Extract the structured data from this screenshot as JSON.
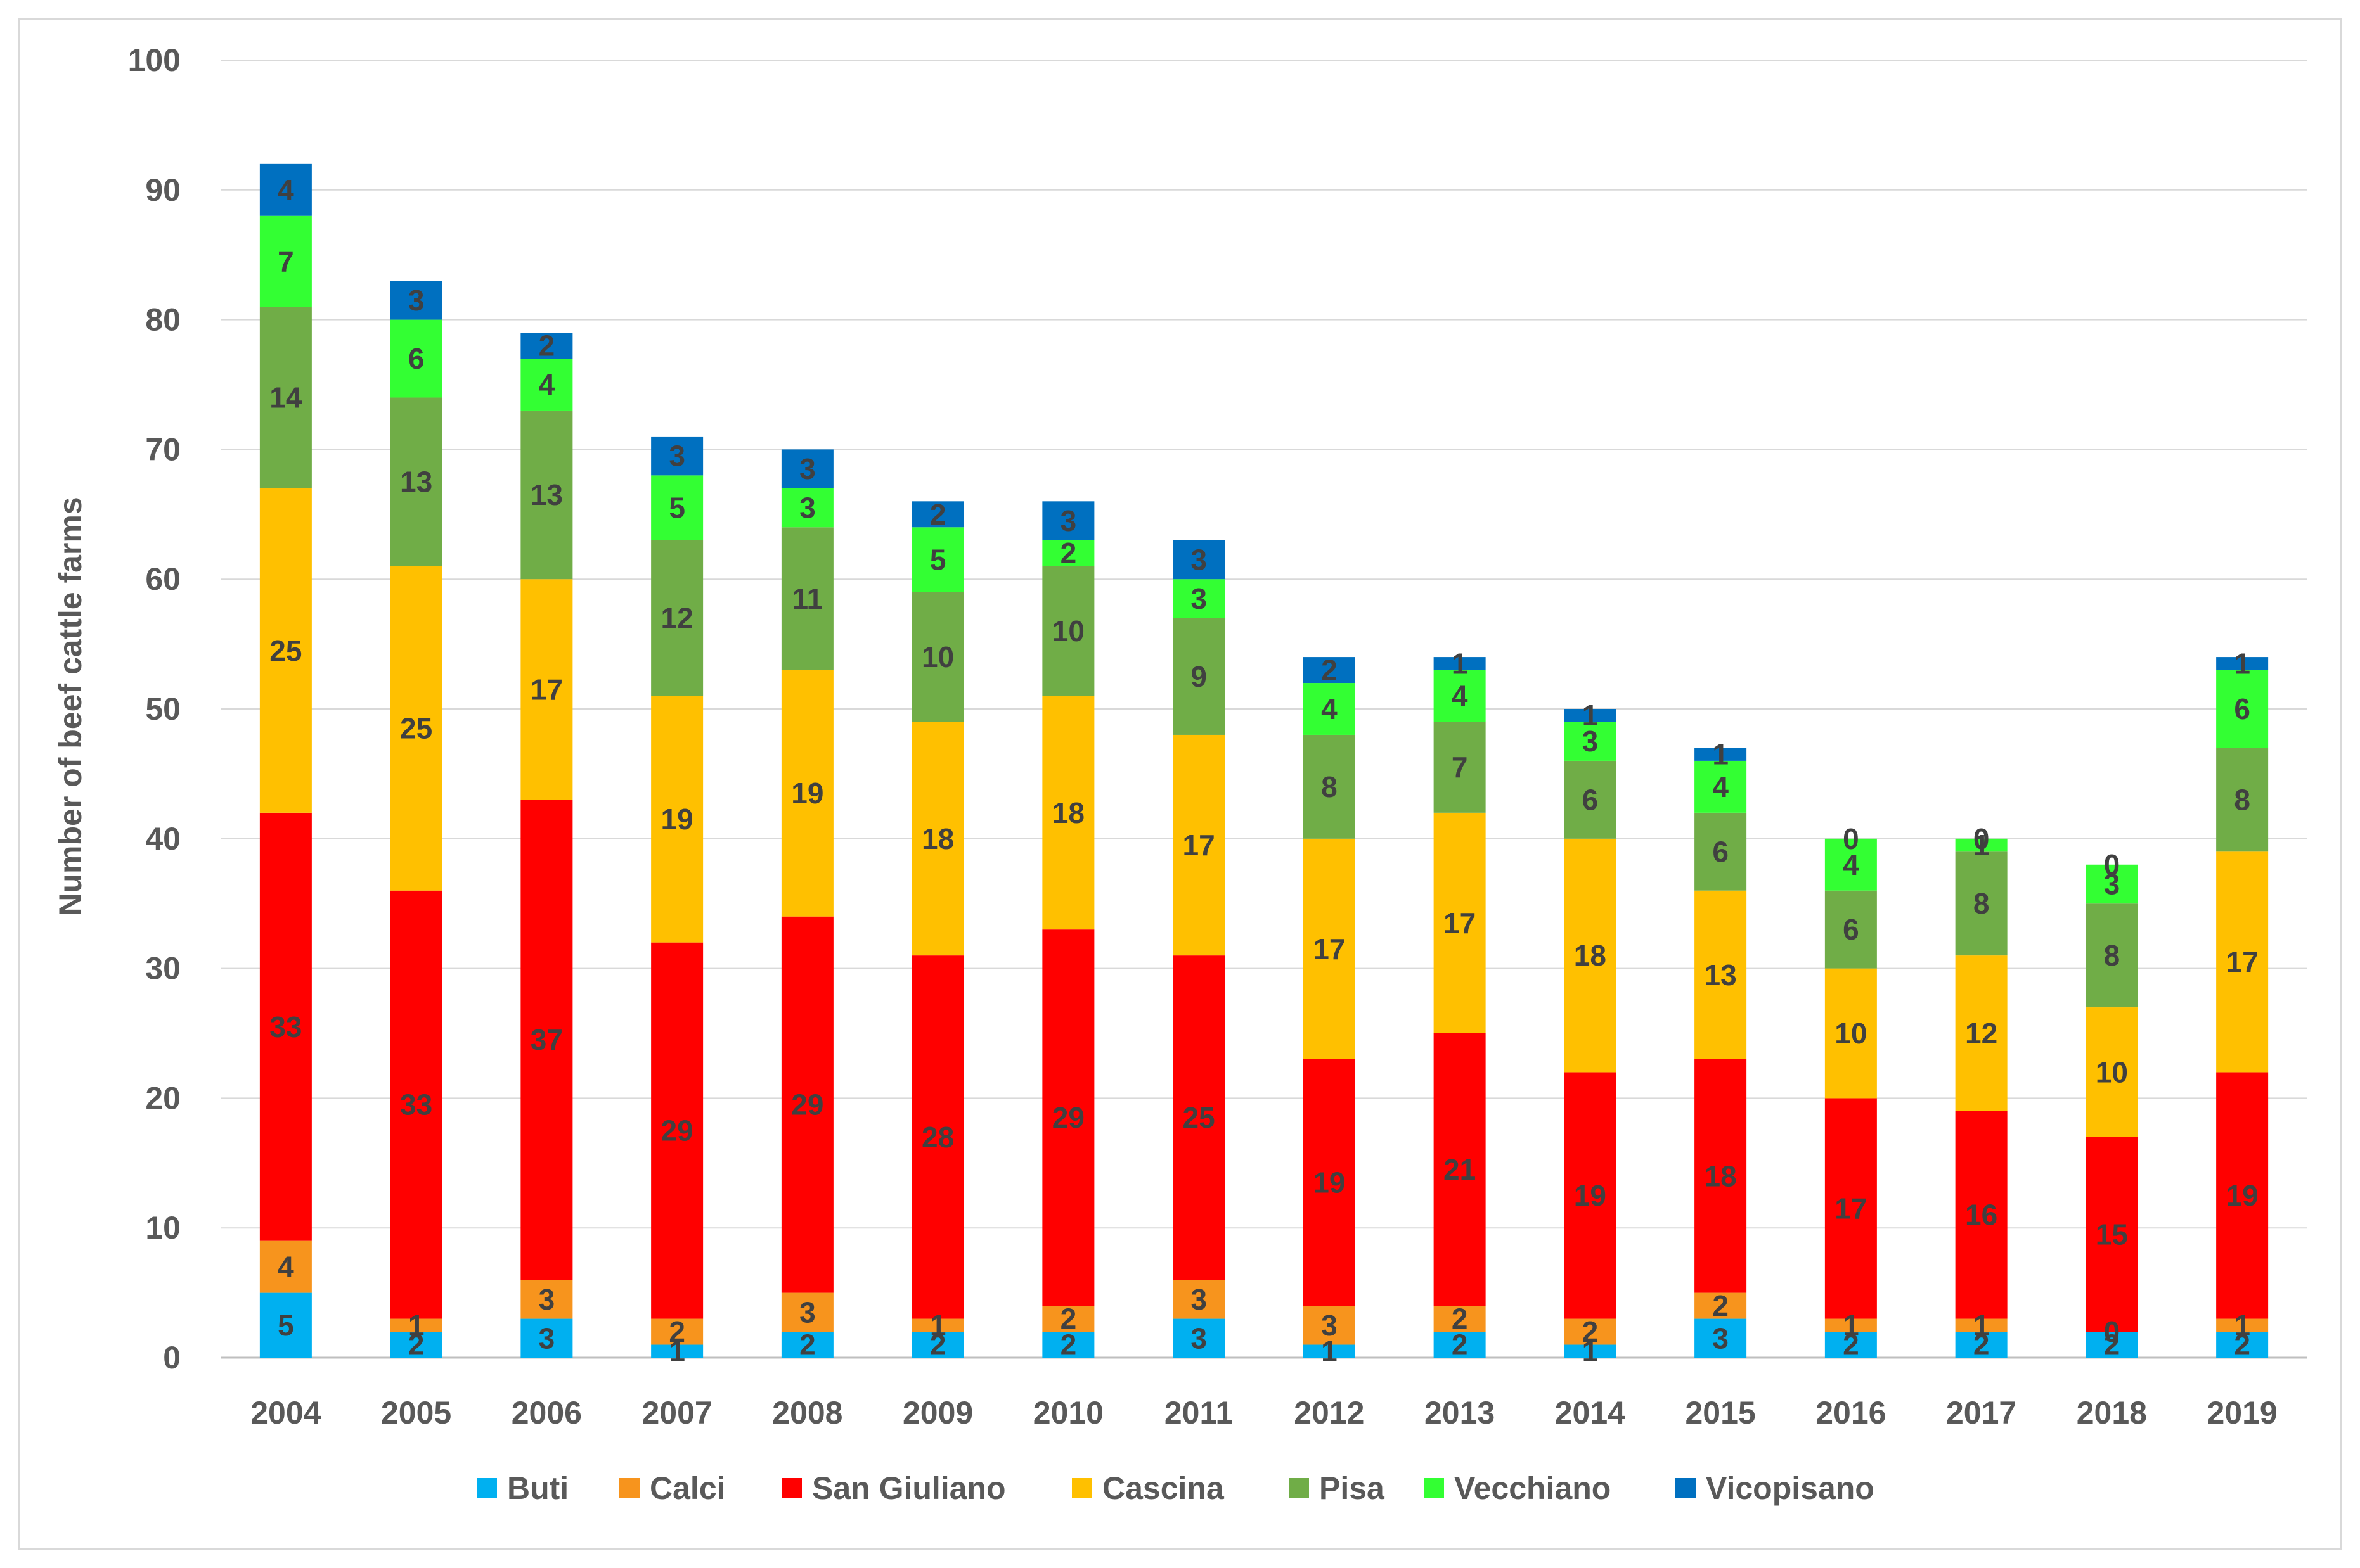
{
  "chart_data": {
    "type": "bar",
    "stacked": true,
    "title": "",
    "xlabel": "",
    "ylabel": "Number of beef cattle farms",
    "ylim": [
      0,
      100
    ],
    "yticks": [
      0,
      10,
      20,
      30,
      40,
      50,
      60,
      70,
      80,
      90,
      100
    ],
    "grid": true,
    "legend_position": "bottom",
    "categories": [
      "2004",
      "2005",
      "2006",
      "2007",
      "2008",
      "2009",
      "2010",
      "2011",
      "2012",
      "2013",
      "2014",
      "2015",
      "2016",
      "2017",
      "2018",
      "2019"
    ],
    "series": [
      {
        "name": "Buti",
        "color": "#00B0F0",
        "values": [
          5,
          2,
          3,
          1,
          2,
          2,
          2,
          3,
          1,
          2,
          1,
          3,
          2,
          2,
          2,
          2
        ]
      },
      {
        "name": "Calci",
        "color": "#F7941D",
        "values": [
          4,
          1,
          3,
          2,
          3,
          1,
          2,
          3,
          3,
          2,
          2,
          2,
          1,
          1,
          0,
          1
        ]
      },
      {
        "name": "San Giuliano",
        "color": "#FF0000",
        "values": [
          33,
          33,
          37,
          29,
          29,
          28,
          29,
          25,
          19,
          21,
          19,
          18,
          17,
          16,
          15,
          19
        ]
      },
      {
        "name": "Cascina",
        "color": "#FFC000",
        "values": [
          25,
          25,
          17,
          19,
          19,
          18,
          18,
          17,
          17,
          17,
          18,
          13,
          10,
          12,
          10,
          17
        ]
      },
      {
        "name": "Pisa",
        "color": "#70AD47",
        "values": [
          14,
          13,
          13,
          12,
          11,
          10,
          10,
          9,
          8,
          7,
          6,
          6,
          6,
          8,
          8,
          8
        ]
      },
      {
        "name": "Vecchiano",
        "color": "#33FF33",
        "values": [
          7,
          6,
          4,
          5,
          3,
          5,
          2,
          3,
          4,
          4,
          3,
          4,
          4,
          1,
          3,
          6
        ]
      },
      {
        "name": "Vicopisano",
        "color": "#0070C0",
        "values": [
          4,
          3,
          2,
          3,
          3,
          2,
          3,
          3,
          2,
          1,
          1,
          1,
          0,
          0,
          0,
          1
        ]
      }
    ]
  }
}
